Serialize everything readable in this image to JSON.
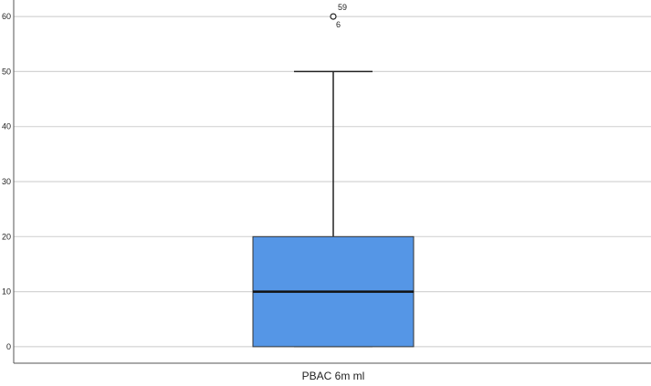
{
  "chart_data": {
    "type": "boxplot",
    "title": "",
    "xlabel": "",
    "ylabel": "",
    "categories": [
      "PBAC 6m ml"
    ],
    "ylim": [
      -3,
      63
    ],
    "yticks": [
      0,
      10,
      20,
      30,
      40,
      50,
      60
    ],
    "grid": true,
    "box": {
      "min": 0,
      "q1": 0,
      "median": 10,
      "q3": 20,
      "max": 50
    },
    "outliers": [
      {
        "value": 60,
        "labels": [
          "59",
          "6"
        ]
      }
    ],
    "colors": {
      "box_fill": "#5596e6",
      "box_stroke": "#333333",
      "grid": "#d4d4d4",
      "axis": "#555555"
    }
  }
}
